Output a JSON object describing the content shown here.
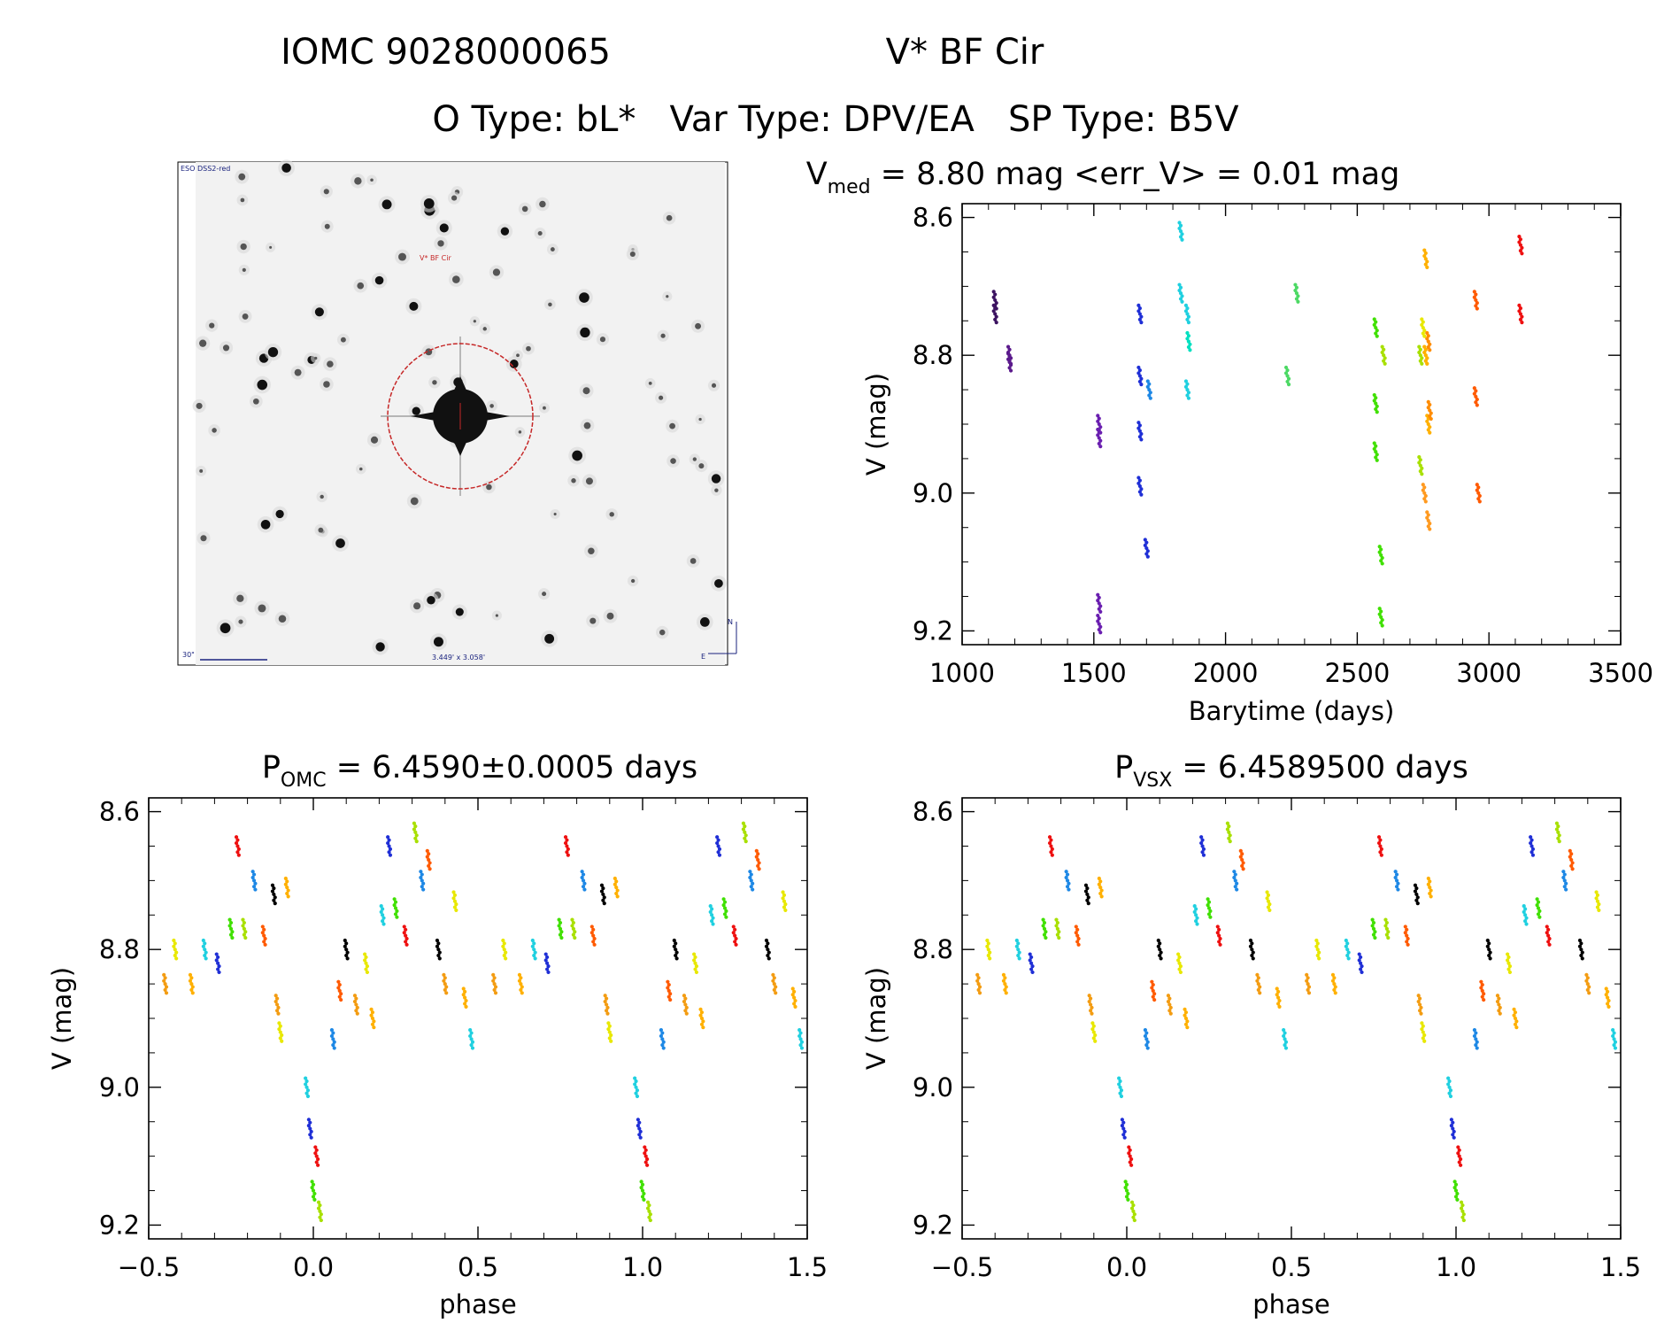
{
  "header": {
    "title_id": "IOMC 9028000065",
    "title_name": "V* BF Cir",
    "subtitle": "O Type: bL*   Var Type: DPV/EA   SP Type: B5V"
  },
  "finder_image": {
    "survey_label": "ESO DSS2-red",
    "target_label": "V* BF Cir",
    "scale_label": "30\"",
    "fov_label": "3.449' x 3.058'",
    "compass_n": "N",
    "compass_e": "E"
  },
  "lightcurve": {
    "title_main": "V",
    "title_sub": "med",
    "title_rest": " = 8.80 mag <err_V> = 0.01 mag",
    "xlabel": "Barytime (days)",
    "ylabel": "V (mag)",
    "xticks": [
      "1000",
      "1500",
      "2000",
      "2500",
      "3000",
      "3500"
    ],
    "yticks": [
      "8.6",
      "8.8",
      "9.0",
      "9.2"
    ]
  },
  "phase_omc": {
    "title_main": "P",
    "title_sub": "OMC",
    "title_rest": " = 6.4590±0.0005 days",
    "xlabel": "phase",
    "ylabel": "V (mag)",
    "xticks": [
      "−0.5",
      "0.0",
      "0.5",
      "1.0",
      "1.5"
    ],
    "yticks": [
      "8.6",
      "8.8",
      "9.0",
      "9.2"
    ]
  },
  "phase_vsx": {
    "title_main": "P",
    "title_sub": "VSX",
    "title_rest": " = 6.4589500 days",
    "xlabel": "phase",
    "ylabel": "V (mag)",
    "xticks": [
      "−0.5",
      "0.0",
      "0.5",
      "1.0",
      "1.5"
    ],
    "yticks": [
      "8.6",
      "8.8",
      "9.0",
      "9.2"
    ]
  },
  "chart_data": [
    {
      "type": "scatter",
      "panel": "lightcurve",
      "xlabel": "Barytime (days)",
      "ylabel": "V (mag)",
      "xlim": [
        1000,
        3500
      ],
      "ylim": [
        9.22,
        8.58
      ],
      "y_inverted": true,
      "grid": false,
      "groups": [
        {
          "color": "#3c1361",
          "x": [
            1125,
            1125
          ],
          "y": [
            8.72,
            8.74
          ]
        },
        {
          "color": "#5b1a8c",
          "x": [
            1180,
            1180
          ],
          "y": [
            8.8,
            8.81
          ]
        },
        {
          "color": "#6a1fb0",
          "x": [
            1520,
            1520,
            1520,
            1520
          ],
          "y": [
            8.9,
            8.92,
            9.16,
            9.19
          ]
        },
        {
          "color": "#1f2fd6",
          "x": [
            1675,
            1675,
            1675,
            1675,
            1700
          ],
          "y": [
            8.74,
            8.83,
            8.91,
            8.99,
            9.08
          ]
        },
        {
          "color": "#1e88e5",
          "x": [
            1710
          ],
          "y": [
            8.85
          ]
        },
        {
          "color": "#20d0e0",
          "x": [
            1830,
            1830,
            1855,
            1855
          ],
          "y": [
            8.62,
            8.71,
            8.74,
            8.85
          ]
        },
        {
          "color": "#00e0c0",
          "x": [
            1860
          ],
          "y": [
            8.78
          ]
        },
        {
          "color": "#4cd964",
          "x": [
            2235,
            2270
          ],
          "y": [
            8.83,
            8.71
          ]
        },
        {
          "color": "#40e000",
          "x": [
            2570,
            2570,
            2570,
            2590,
            2590
          ],
          "y": [
            8.76,
            8.87,
            8.94,
            9.09,
            9.18
          ]
        },
        {
          "color": "#a8e000",
          "x": [
            2600,
            2740,
            2740
          ],
          "y": [
            8.8,
            8.8,
            8.96
          ]
        },
        {
          "color": "#e8e800",
          "x": [
            2750,
            2760
          ],
          "y": [
            8.76,
            8.8
          ]
        },
        {
          "color": "#ffb000",
          "x": [
            2760,
            2760,
            2770
          ],
          "y": [
            8.66,
            8.8,
            8.9
          ]
        },
        {
          "color": "#ff8c00",
          "x": [
            2770,
            2775
          ],
          "y": [
            8.78,
            8.88
          ]
        },
        {
          "color": "#ff9a20",
          "x": [
            2755,
            2770
          ],
          "y": [
            9.0,
            9.04
          ]
        },
        {
          "color": "#ff5a00",
          "x": [
            2950,
            2950,
            2960
          ],
          "y": [
            8.72,
            8.86,
            9.0
          ]
        },
        {
          "color": "#ee1010",
          "x": [
            3120,
            3120
          ],
          "y": [
            8.64,
            8.74
          ]
        }
      ]
    },
    {
      "type": "scatter",
      "panel": "phase_omc",
      "period_days": 6.459,
      "period_error": 0.0005,
      "xlabel": "phase",
      "ylabel": "V (mag)",
      "xlim": [
        -0.5,
        1.5
      ],
      "ylim": [
        9.22,
        8.58
      ],
      "y_inverted": true,
      "grid": false,
      "points": {
        "x": [
          -0.45,
          -0.42,
          -0.37,
          -0.33,
          -0.29,
          -0.25,
          -0.23,
          -0.21,
          -0.18,
          -0.15,
          -0.12,
          -0.11,
          -0.1,
          -0.08,
          -0.02,
          -0.01,
          0.0,
          0.01,
          0.02,
          0.06,
          0.08,
          0.1,
          0.13,
          0.16,
          0.18,
          0.21,
          0.23,
          0.25,
          0.28,
          0.31,
          0.33,
          0.35,
          0.38,
          0.4,
          0.43,
          0.46,
          0.48
        ],
        "y": [
          8.85,
          8.8,
          8.85,
          8.8,
          8.82,
          8.77,
          8.65,
          8.77,
          8.7,
          8.78,
          8.72,
          8.88,
          8.92,
          8.71,
          9.0,
          9.06,
          9.15,
          9.1,
          9.18,
          8.93,
          8.86,
          8.8,
          8.88,
          8.82,
          8.9,
          8.75,
          8.65,
          8.74,
          8.78,
          8.63,
          8.7,
          8.67,
          8.8,
          8.85,
          8.73,
          8.87,
          8.93
        ]
      }
    },
    {
      "type": "scatter",
      "panel": "phase_vsx",
      "period_days": 6.45895,
      "xlabel": "phase",
      "ylabel": "V (mag)",
      "xlim": [
        -0.5,
        1.5
      ],
      "ylim": [
        9.22,
        8.58
      ],
      "y_inverted": true,
      "grid": false,
      "points": {
        "x": [
          -0.45,
          -0.42,
          -0.37,
          -0.33,
          -0.29,
          -0.25,
          -0.23,
          -0.21,
          -0.18,
          -0.15,
          -0.12,
          -0.11,
          -0.1,
          -0.08,
          -0.02,
          -0.01,
          0.0,
          0.01,
          0.02,
          0.06,
          0.08,
          0.1,
          0.13,
          0.16,
          0.18,
          0.21,
          0.23,
          0.25,
          0.28,
          0.31,
          0.33,
          0.35,
          0.38,
          0.4,
          0.43,
          0.46,
          0.48
        ],
        "y": [
          8.85,
          8.8,
          8.85,
          8.8,
          8.82,
          8.77,
          8.65,
          8.77,
          8.7,
          8.78,
          8.72,
          8.88,
          8.92,
          8.71,
          9.0,
          9.06,
          9.15,
          9.1,
          9.18,
          8.93,
          8.86,
          8.8,
          8.88,
          8.82,
          8.9,
          8.75,
          8.65,
          8.74,
          8.78,
          8.63,
          8.7,
          8.67,
          8.8,
          8.85,
          8.73,
          8.87,
          8.93
        ]
      }
    }
  ]
}
